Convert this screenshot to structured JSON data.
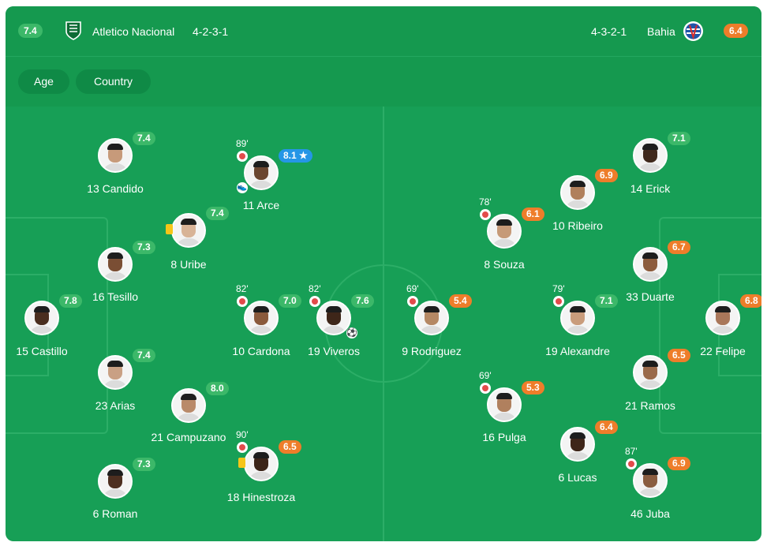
{
  "header": {
    "home": {
      "rating": "7.4",
      "name": "Atletico Nacional",
      "formation": "4-2-3-1",
      "crest": "atletico-nacional-crest"
    },
    "away": {
      "rating": "6.4",
      "name": "Bahia",
      "formation": "4-3-2-1",
      "crest": "bahia-crest"
    }
  },
  "filters": {
    "age": "Age",
    "country": "Country"
  },
  "colors": {
    "pitch": "#179f56",
    "rating_green": "#3cb869",
    "rating_orange": "#ee7d2a",
    "rating_blue": "#2596e6"
  },
  "players": [
    {
      "name": "13 Candido",
      "rating": "7.4",
      "color": "green",
      "skin": "#c79a7a"
    },
    {
      "name": "11 Arce",
      "rating": "8.1 ★",
      "color": "blue",
      "minute": "89'",
      "sub": true,
      "boot": true,
      "skin": "#6b4630"
    },
    {
      "name": "8 Uribe",
      "rating": "7.4",
      "color": "green",
      "yellow": true,
      "skin": "#d8b397"
    },
    {
      "name": "16 Tesillo",
      "rating": "7.3",
      "color": "green",
      "skin": "#7a4e34"
    },
    {
      "name": "15 Castillo",
      "rating": "7.8",
      "color": "green",
      "skin": "#4a2e1f"
    },
    {
      "name": "10 Cardona",
      "rating": "7.0",
      "color": "green",
      "minute": "82'",
      "sub": true,
      "skin": "#8a5a3c"
    },
    {
      "name": "19 Viveros",
      "rating": "7.6",
      "color": "green",
      "minute": "82'",
      "sub": true,
      "goal": true,
      "skin": "#3e2619"
    },
    {
      "name": "23 Arias",
      "rating": "7.4",
      "color": "green",
      "skin": "#c9a084"
    },
    {
      "name": "21 Campuzano",
      "rating": "8.0",
      "color": "green",
      "skin": "#b98a6a"
    },
    {
      "name": "18 Hinestroza",
      "rating": "6.5",
      "color": "orange",
      "minute": "90'",
      "sub": true,
      "yellow": true,
      "skin": "#3b2418"
    },
    {
      "name": "6 Roman",
      "rating": "7.3",
      "color": "green",
      "skin": "#4d2f20"
    },
    {
      "name": "14 Erick",
      "rating": "7.1",
      "color": "green",
      "skin": "#3f281c"
    },
    {
      "name": "10 Ribeiro",
      "rating": "6.9",
      "color": "orange",
      "skin": "#b0805c"
    },
    {
      "name": "8 Souza",
      "rating": "6.1",
      "color": "orange",
      "minute": "78'",
      "sub": true,
      "skin": "#c69a78"
    },
    {
      "name": "33 Duarte",
      "rating": "6.7",
      "color": "orange",
      "skin": "#8c5c3d"
    },
    {
      "name": "9 Rodriguez",
      "rating": "5.4",
      "color": "orange",
      "minute": "69'",
      "sub": true,
      "skin": "#b58864"
    },
    {
      "name": "19 Alexandre",
      "rating": "7.1",
      "color": "green",
      "minute": "79'",
      "sub": true,
      "skin": "#c99c7c"
    },
    {
      "name": "22 Felipe",
      "rating": "6.8",
      "color": "orange",
      "skin": "#a9775a"
    },
    {
      "name": "16 Pulga",
      "rating": "5.3",
      "color": "orange",
      "minute": "69'",
      "sub": true,
      "skin": "#b0805e"
    },
    {
      "name": "21 Ramos",
      "rating": "6.5",
      "color": "orange",
      "skin": "#9a6a4a"
    },
    {
      "name": "6 Lucas",
      "rating": "6.4",
      "color": "orange",
      "skin": "#3e2519"
    },
    {
      "name": "46 Juba",
      "rating": "6.9",
      "color": "orange",
      "minute": "87'",
      "sub": true,
      "skin": "#8a5d40"
    }
  ]
}
